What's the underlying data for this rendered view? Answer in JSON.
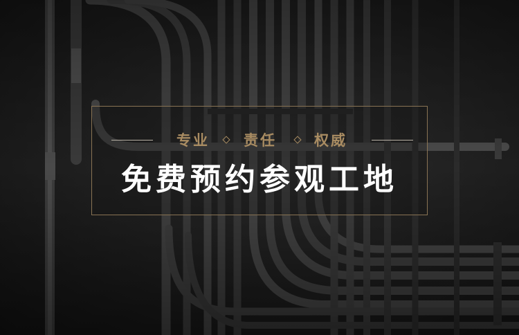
{
  "banner": {
    "taglines": [
      "专业",
      "责任",
      "权威"
    ],
    "headline": "免费预约参观工地"
  },
  "colors": {
    "gold": "#a98c62",
    "frame": "#8a7454",
    "text": "#ffffff",
    "pipe": "#4a4a4a"
  }
}
